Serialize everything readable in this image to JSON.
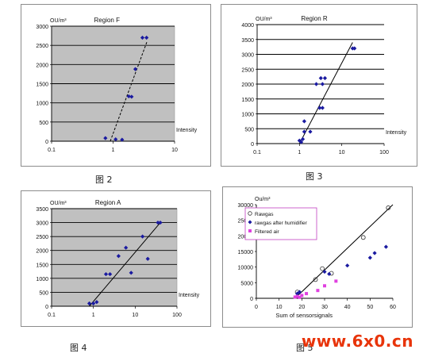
{
  "chart_data": [
    {
      "type": "scatter",
      "panel": "fig2",
      "title": "Region F",
      "ylabel": "OU/m³",
      "xlabel": "Intensity",
      "xscale": "log",
      "xlim": [
        0.1,
        10
      ],
      "ylim": [
        0,
        3000
      ],
      "grid": true,
      "background": "#c0c0c0",
      "x_ticks": [
        0.1,
        1,
        10
      ],
      "x_tick_labels": [
        "0.1",
        "1",
        "10"
      ],
      "y_ticks": [
        0,
        500,
        1000,
        1500,
        2000,
        2500,
        3000
      ],
      "y_tick_labels": [
        "0",
        "500",
        "1000",
        "1500",
        "2000",
        "2500",
        "3000"
      ],
      "series": [
        {
          "points": [
            [
              0.75,
              80
            ],
            [
              1.1,
              50
            ],
            [
              1.4,
              40
            ],
            [
              1.8,
              1170
            ],
            [
              2.0,
              1160
            ],
            [
              2.3,
              1880
            ],
            [
              3.0,
              2700
            ],
            [
              3.5,
              2700
            ]
          ]
        }
      ],
      "trendline": [
        [
          0.9,
          0
        ],
        [
          3.6,
          2620
        ]
      ]
    },
    {
      "type": "scatter",
      "panel": "fig3",
      "title": "Region R",
      "ylabel": "OU/m³",
      "xlabel": "Intensity",
      "xscale": "log",
      "xlim": [
        0.1,
        100
      ],
      "ylim": [
        0,
        4000
      ],
      "grid": true,
      "background": "#ffffff",
      "x_ticks": [
        0.1,
        1,
        10,
        100
      ],
      "x_tick_labels": [
        "0.1",
        "1",
        "10",
        "100"
      ],
      "y_ticks": [
        0,
        500,
        1000,
        1500,
        2000,
        2500,
        3000,
        3500,
        4000
      ],
      "y_tick_labels": [
        "0",
        "500",
        "1000",
        "1500",
        "2000",
        "2500",
        "3000",
        "3500",
        "4000"
      ],
      "series": [
        {
          "points": [
            [
              1.0,
              100
            ],
            [
              1.1,
              50
            ],
            [
              1.2,
              150
            ],
            [
              1.3,
              400
            ],
            [
              1.3,
              750
            ],
            [
              1.8,
              400
            ],
            [
              2.5,
              2000
            ],
            [
              3.0,
              1200
            ],
            [
              3.5,
              1200
            ],
            [
              3.2,
              2200
            ],
            [
              3.5,
              2000
            ],
            [
              4.0,
              2200
            ],
            [
              18,
              3200
            ],
            [
              20,
              3200
            ]
          ]
        }
      ],
      "trendline": [
        [
          1.0,
          0
        ],
        [
          18,
          3400
        ]
      ]
    },
    {
      "type": "scatter",
      "panel": "fig4",
      "title": "Region A",
      "ylabel": "OU/m³",
      "xlabel": "Intensity",
      "xscale": "log",
      "xlim": [
        0.1,
        100
      ],
      "ylim": [
        0,
        3500
      ],
      "grid": true,
      "background": "#c0c0c0",
      "x_ticks": [
        0.1,
        1,
        10,
        100
      ],
      "x_tick_labels": [
        "0.1",
        "1",
        "10",
        "100"
      ],
      "y_ticks": [
        0,
        500,
        1000,
        1500,
        2000,
        2500,
        3000,
        3500
      ],
      "y_tick_labels": [
        "0",
        "500",
        "1000",
        "1500",
        "2000",
        "2500",
        "3000",
        "3500"
      ],
      "series": [
        {
          "points": [
            [
              0.8,
              100
            ],
            [
              1.0,
              100
            ],
            [
              1.2,
              150
            ],
            [
              2.0,
              1150
            ],
            [
              2.5,
              1150
            ],
            [
              4.0,
              1800
            ],
            [
              6.0,
              2100
            ],
            [
              8.0,
              1200
            ],
            [
              15,
              2500
            ],
            [
              20,
              1700
            ],
            [
              35,
              3000
            ],
            [
              40,
              3000
            ]
          ]
        }
      ],
      "trendline": [
        [
          0.8,
          0
        ],
        [
          40,
          3000
        ]
      ]
    },
    {
      "type": "scatter",
      "panel": "fig5",
      "ylabel": "Ou/m³",
      "xlabel": "Sum of sensorsignals",
      "xlim": [
        0,
        60
      ],
      "ylim": [
        0,
        30000
      ],
      "grid": false,
      "background": "#ffffff",
      "x_ticks": [
        0,
        10,
        20,
        30,
        40,
        50,
        60
      ],
      "x_tick_labels": [
        "0",
        "10",
        "20",
        "30",
        "40",
        "50",
        "60"
      ],
      "y_ticks": [
        0,
        5000,
        10000,
        15000,
        20000,
        25000,
        30000
      ],
      "y_tick_labels": [
        "0",
        "5000",
        "10000",
        "15000",
        "20000",
        "25000",
        "30000"
      ],
      "legend": "top-left",
      "series": [
        {
          "name": "Rawgas",
          "marker": "circle-open",
          "color": "#333333",
          "points": [
            [
              58,
              29000
            ],
            [
              47,
              19500
            ],
            [
              29,
              9500
            ],
            [
              33,
              8000
            ],
            [
              26,
              6000
            ],
            [
              18,
              2000
            ]
          ]
        },
        {
          "name": "rawgas after humidifier",
          "marker": "diamond",
          "color": "#1a1aa0",
          "points": [
            [
              57,
              16500
            ],
            [
              52,
              14500
            ],
            [
              50,
              13000
            ],
            [
              40,
              10500
            ],
            [
              32,
              7800
            ],
            [
              30,
              8500
            ],
            [
              19,
              2000
            ],
            [
              18,
              1500
            ]
          ]
        },
        {
          "name": "Filtered air",
          "marker": "square",
          "color": "#e040e0",
          "points": [
            [
              35,
              5500
            ],
            [
              30,
              4000
            ],
            [
              27,
              2500
            ],
            [
              22,
              1500
            ],
            [
              20,
              900
            ],
            [
              18,
              600
            ],
            [
              17,
              400
            ],
            [
              19,
              300
            ]
          ]
        }
      ],
      "trendline": [
        [
          17,
          0
        ],
        [
          60,
          30000
        ]
      ]
    }
  ],
  "captions": {
    "fig2": "图 2",
    "fig3": "图 3",
    "fig4": "图 4",
    "fig5": "图 5"
  },
  "watermark": "www.6x0.cn"
}
